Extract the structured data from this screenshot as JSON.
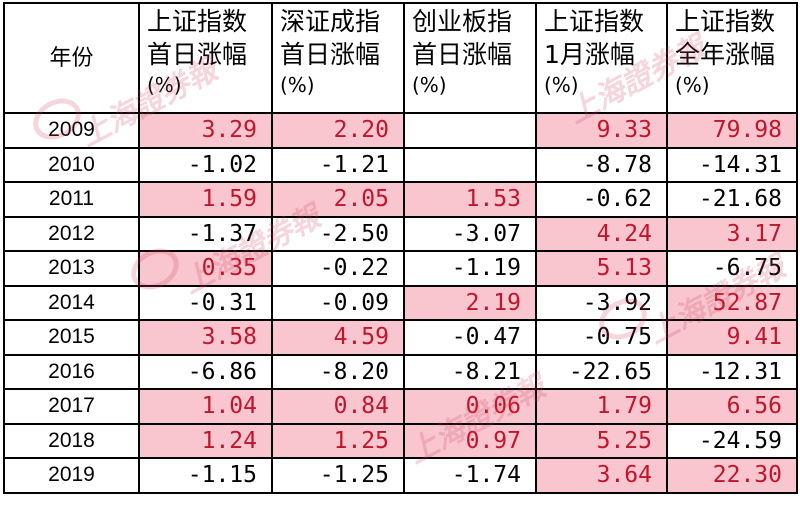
{
  "headers": {
    "year": "年份",
    "col1": [
      "上证指数",
      "首日涨幅"
    ],
    "col2": [
      "深证成指",
      "首日涨幅"
    ],
    "col3": [
      "创业板指",
      "首日涨幅"
    ],
    "col4": [
      "上证指数",
      "1月涨幅"
    ],
    "col5": [
      "上证指数",
      "全年涨幅"
    ],
    "unit": "(%)"
  },
  "rows": [
    {
      "year": "2009",
      "cells": [
        {
          "v": "3.29",
          "hl": true
        },
        {
          "v": "2.20",
          "hl": true
        },
        {
          "v": "",
          "hl": false
        },
        {
          "v": "9.33",
          "hl": true
        },
        {
          "v": "79.98",
          "hl": true
        }
      ]
    },
    {
      "year": "2010",
      "cells": [
        {
          "v": "-1.02",
          "hl": false
        },
        {
          "v": "-1.21",
          "hl": false
        },
        {
          "v": "",
          "hl": false
        },
        {
          "v": "-8.78",
          "hl": false
        },
        {
          "v": "-14.31",
          "hl": false
        }
      ]
    },
    {
      "year": "2011",
      "cells": [
        {
          "v": "1.59",
          "hl": true
        },
        {
          "v": "2.05",
          "hl": true
        },
        {
          "v": "1.53",
          "hl": true
        },
        {
          "v": "-0.62",
          "hl": false
        },
        {
          "v": "-21.68",
          "hl": false
        }
      ]
    },
    {
      "year": "2012",
      "cells": [
        {
          "v": "-1.37",
          "hl": false
        },
        {
          "v": "-2.50",
          "hl": false
        },
        {
          "v": "-3.07",
          "hl": false
        },
        {
          "v": "4.24",
          "hl": true
        },
        {
          "v": "3.17",
          "hl": true
        }
      ]
    },
    {
      "year": "2013",
      "cells": [
        {
          "v": "0.35",
          "hl": true
        },
        {
          "v": "-0.22",
          "hl": false
        },
        {
          "v": "-1.19",
          "hl": false
        },
        {
          "v": "5.13",
          "hl": true
        },
        {
          "v": "-6.75",
          "hl": false
        }
      ]
    },
    {
      "year": "2014",
      "cells": [
        {
          "v": "-0.31",
          "hl": false
        },
        {
          "v": "-0.09",
          "hl": false
        },
        {
          "v": "2.19",
          "hl": true
        },
        {
          "v": "-3.92",
          "hl": false
        },
        {
          "v": "52.87",
          "hl": true
        }
      ]
    },
    {
      "year": "2015",
      "cells": [
        {
          "v": "3.58",
          "hl": true
        },
        {
          "v": "4.59",
          "hl": true
        },
        {
          "v": "-0.47",
          "hl": false
        },
        {
          "v": "-0.75",
          "hl": false
        },
        {
          "v": "9.41",
          "hl": true
        }
      ]
    },
    {
      "year": "2016",
      "cells": [
        {
          "v": "-6.86",
          "hl": false
        },
        {
          "v": "-8.20",
          "hl": false
        },
        {
          "v": "-8.21",
          "hl": false
        },
        {
          "v": "-22.65",
          "hl": false
        },
        {
          "v": "-12.31",
          "hl": false
        }
      ]
    },
    {
      "year": "2017",
      "cells": [
        {
          "v": "1.04",
          "hl": true
        },
        {
          "v": "0.84",
          "hl": true
        },
        {
          "v": "0.06",
          "hl": true
        },
        {
          "v": "1.79",
          "hl": true
        },
        {
          "v": "6.56",
          "hl": true
        }
      ]
    },
    {
      "year": "2018",
      "cells": [
        {
          "v": "1.24",
          "hl": true
        },
        {
          "v": "1.25",
          "hl": true
        },
        {
          "v": "0.97",
          "hl": true
        },
        {
          "v": "5.25",
          "hl": true
        },
        {
          "v": "-24.59",
          "hl": false
        }
      ]
    },
    {
      "year": "2019",
      "cells": [
        {
          "v": "-1.15",
          "hl": false
        },
        {
          "v": "-1.25",
          "hl": false
        },
        {
          "v": "-1.74",
          "hl": false
        },
        {
          "v": "3.64",
          "hl": true
        },
        {
          "v": "22.30",
          "hl": true
        }
      ]
    }
  ],
  "colors": {
    "positive_text": "#c0152a",
    "negative_text": "#000000",
    "highlight_fill": "#f9c6cf"
  },
  "watermark": {
    "text": "上海證券報"
  }
}
